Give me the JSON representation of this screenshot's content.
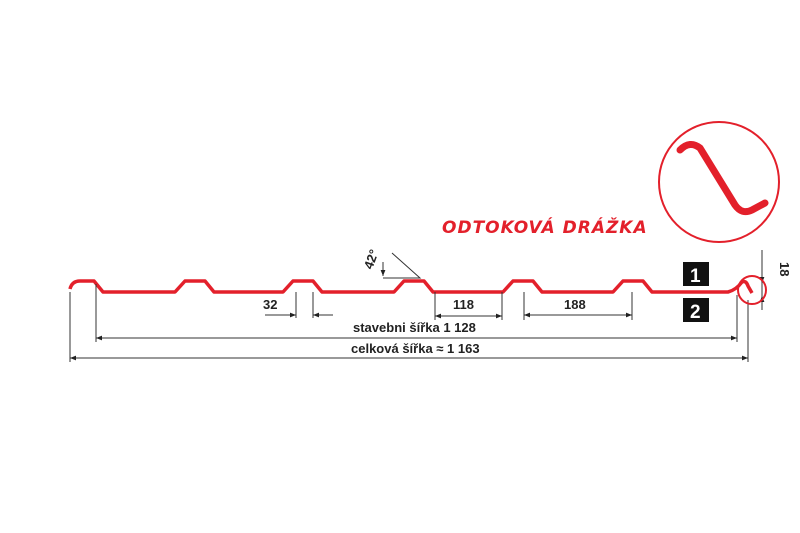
{
  "title": "ODTOKOVÁ DRÁŽKA",
  "dimensions": {
    "rib_top": "32",
    "rib_gap": "118",
    "pitch": "188",
    "height": "18",
    "angle": "42°",
    "building_width": "stavebni šířka 1 128",
    "total_width": "celková šířka ≈ 1 163"
  },
  "markers": [
    "1",
    "2"
  ],
  "colors": {
    "profile": "#e3202b",
    "lines": "#333333"
  }
}
